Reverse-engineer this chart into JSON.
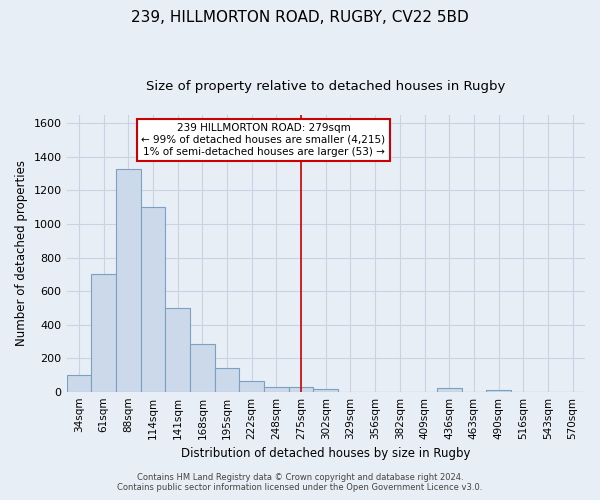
{
  "title": "239, HILLMORTON ROAD, RUGBY, CV22 5BD",
  "subtitle": "Size of property relative to detached houses in Rugby",
  "xlabel": "Distribution of detached houses by size in Rugby",
  "ylabel": "Number of detached properties",
  "bar_labels": [
    "34sqm",
    "61sqm",
    "88sqm",
    "114sqm",
    "141sqm",
    "168sqm",
    "195sqm",
    "222sqm",
    "248sqm",
    "275sqm",
    "302sqm",
    "329sqm",
    "356sqm",
    "382sqm",
    "409sqm",
    "436sqm",
    "463sqm",
    "490sqm",
    "516sqm",
    "543sqm",
    "570sqm"
  ],
  "bar_values": [
    100,
    700,
    1330,
    1100,
    500,
    285,
    140,
    65,
    25,
    25,
    15,
    0,
    0,
    0,
    0,
    20,
    0,
    10,
    0,
    0,
    0
  ],
  "bar_color": "#ccd9ea",
  "bar_edge_color": "#7aa0c4",
  "vline_x_idx": 9,
  "vline_color": "#cc0000",
  "ylim": [
    0,
    1650
  ],
  "yticks": [
    0,
    200,
    400,
    600,
    800,
    1000,
    1200,
    1400,
    1600
  ],
  "annotation_title": "239 HILLMORTON ROAD: 279sqm",
  "annotation_line1": "← 99% of detached houses are smaller (4,215)",
  "annotation_line2": "1% of semi-detached houses are larger (53) →",
  "footer1": "Contains HM Land Registry data © Crown copyright and database right 2024.",
  "footer2": "Contains public sector information licensed under the Open Government Licence v3.0.",
  "background_color": "#e8eef5",
  "grid_color": "#c8d4e3",
  "title_fontsize": 11,
  "subtitle_fontsize": 9.5,
  "label_fontsize": 8.5,
  "tick_fontsize": 7.5,
  "footer_fontsize": 6
}
